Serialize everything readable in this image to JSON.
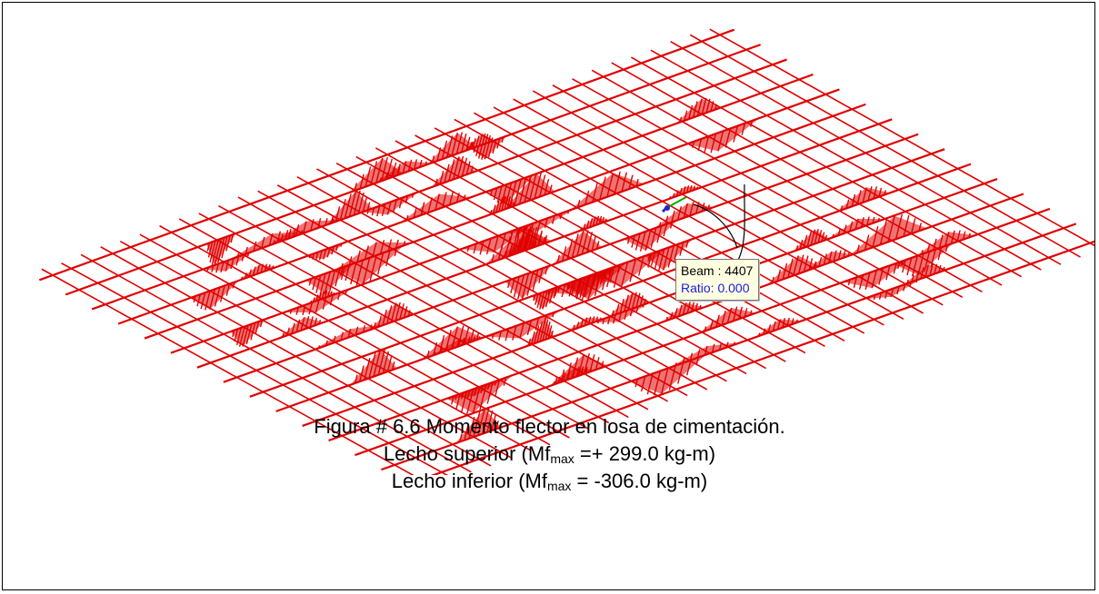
{
  "viewport": {
    "member_color": "#e00000",
    "edge_color": "#222222",
    "background": "#ffffff"
  },
  "tooltip": {
    "beam_label": "Beam : 4407",
    "ratio_label": "Ratio: 0.000",
    "background": "#ffffe1",
    "ratio_color": "#1a1ae6"
  },
  "caption": {
    "figure_line": "Figura # 6.6  Momento flector en losa de cimentación.",
    "upper": {
      "prefix": "Lecho superior (Mf",
      "subscript": "max",
      "suffix": " =+ 299.0 kg-m)"
    },
    "lower": {
      "prefix": "Lecho inferior (Mf",
      "subscript": "max",
      "suffix": " = -306.0 kg-m)"
    }
  }
}
